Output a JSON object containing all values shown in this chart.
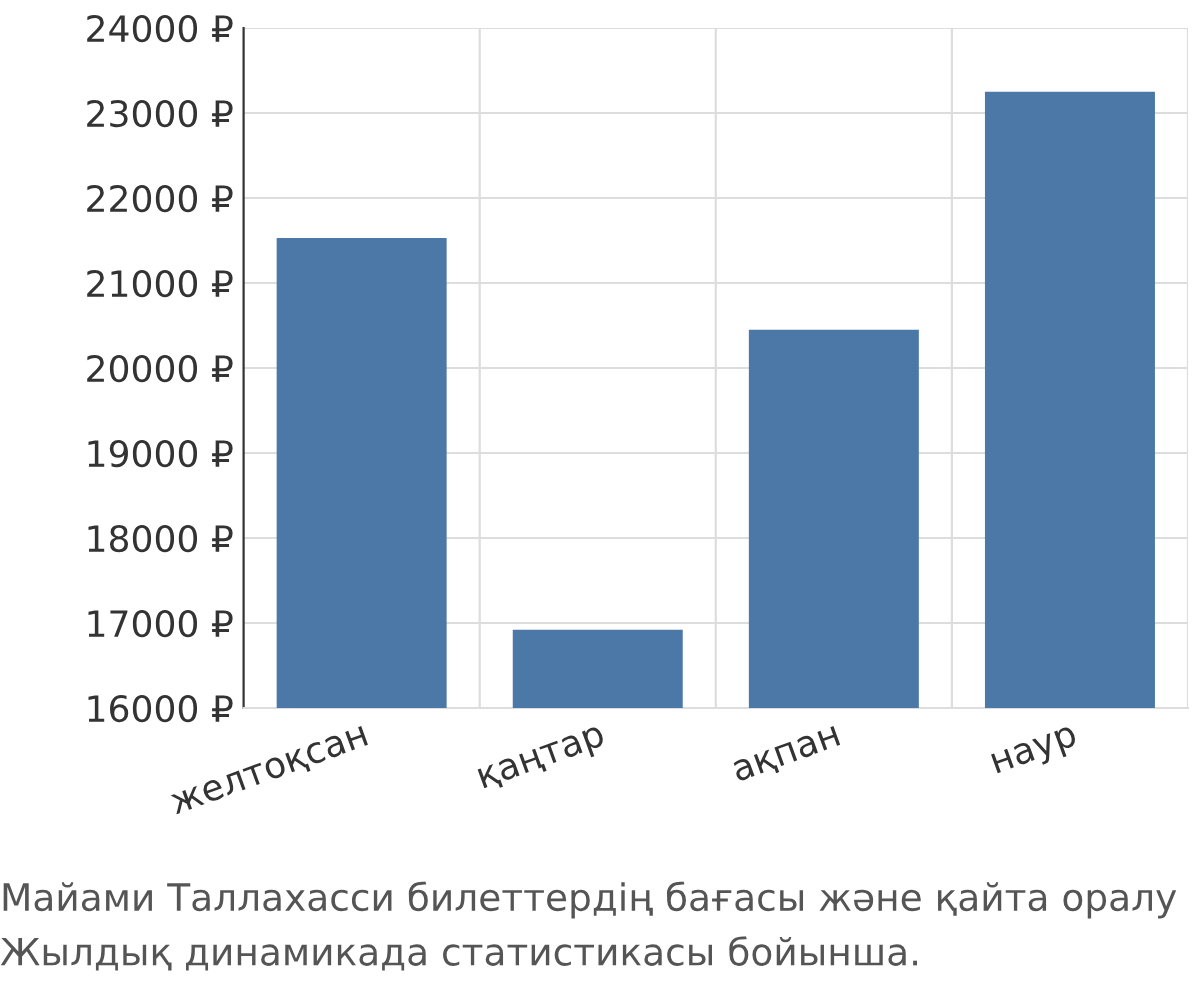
{
  "chart_data": {
    "type": "bar",
    "categories": [
      "желтоқсан",
      "қаңтар",
      "ақпан",
      "наур"
    ],
    "values": [
      21530,
      16920,
      20450,
      23250
    ],
    "color": "#4c78a8",
    "ylim": [
      16000,
      24000
    ],
    "yticks": [
      {
        "value": 16000,
        "label": "16000 ₽"
      },
      {
        "value": 17000,
        "label": "17000 ₽"
      },
      {
        "value": 18000,
        "label": "18000 ₽"
      },
      {
        "value": 19000,
        "label": "19000 ₽"
      },
      {
        "value": 20000,
        "label": "20000 ₽"
      },
      {
        "value": 21000,
        "label": "21000 ₽"
      },
      {
        "value": 22000,
        "label": "22000 ₽"
      },
      {
        "value": 23000,
        "label": "23000 ₽"
      },
      {
        "value": 24000,
        "label": "24000 ₽"
      }
    ],
    "grid": true,
    "annotations": [
      "Майами Таллахасси билеттердің бағасы және қайта оралу",
      "Жылдық динамикада статистикасы бойынша."
    ]
  }
}
